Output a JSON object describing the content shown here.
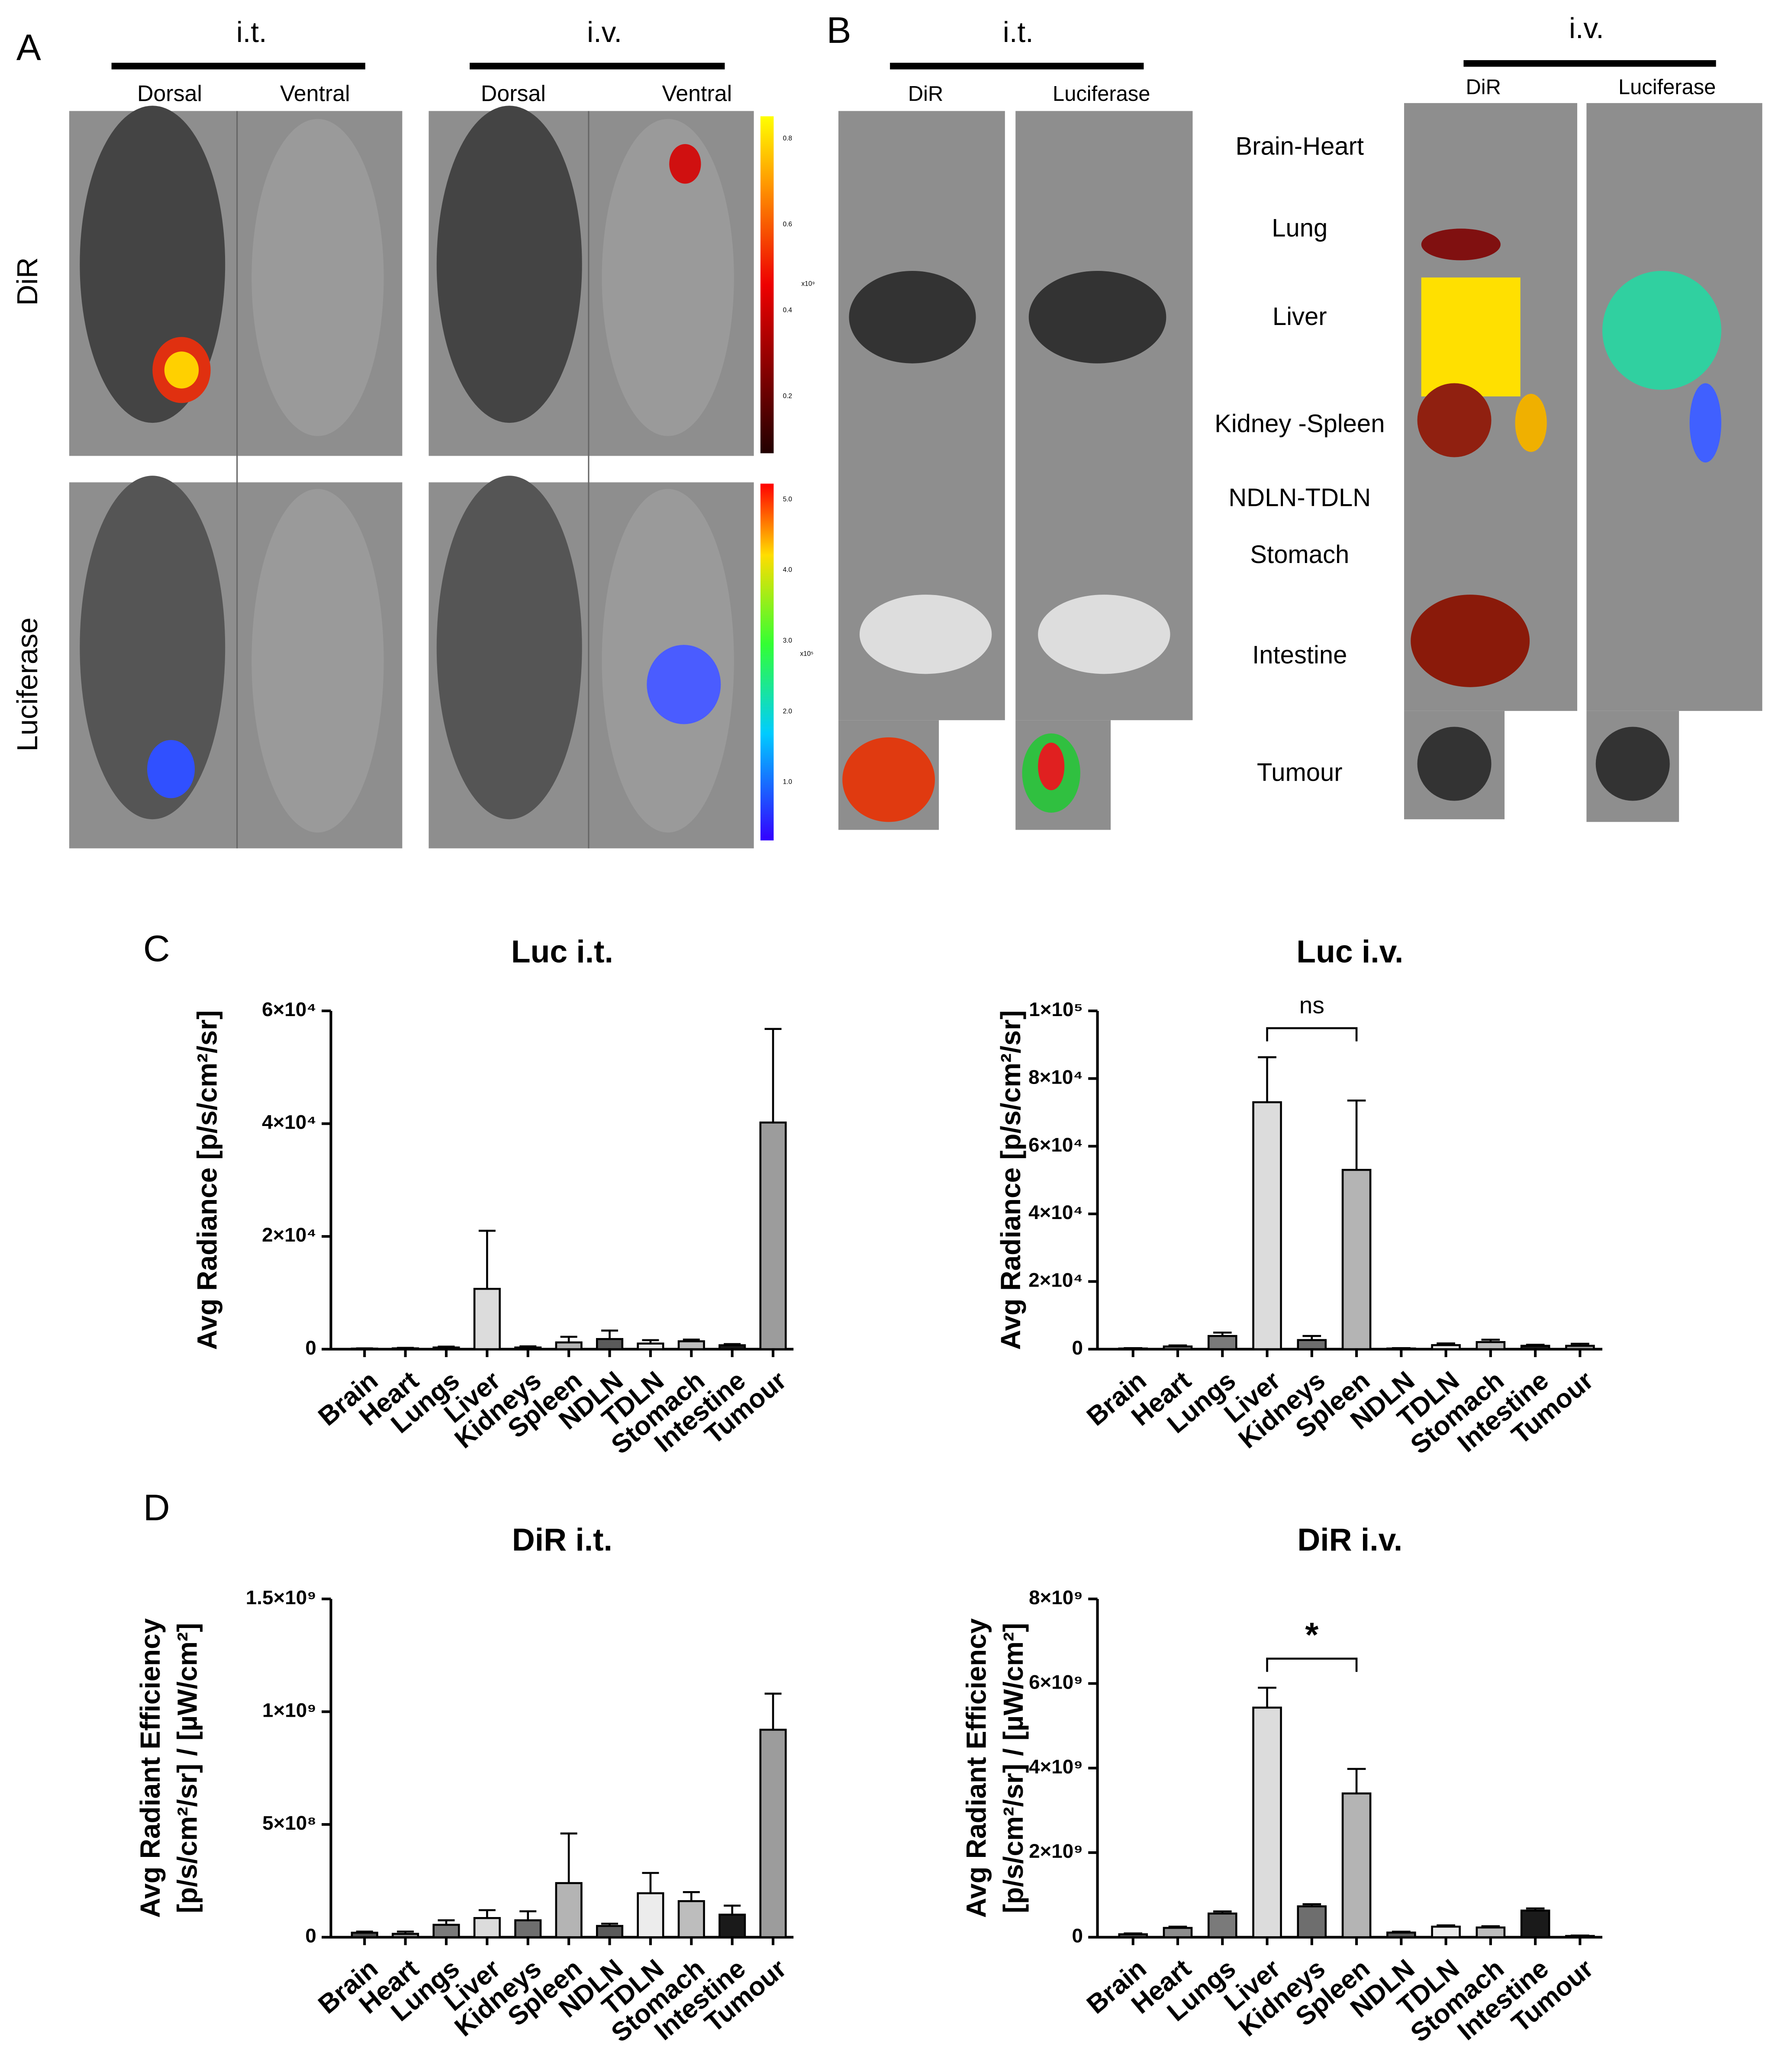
{
  "panel_labels": [
    "A",
    "B",
    "C",
    "D"
  ],
  "panel_a": {
    "routes": [
      "i.t.",
      "i.v."
    ],
    "views": [
      "Dorsal",
      "Ventral",
      "Dorsal",
      "Ventral"
    ],
    "rows": [
      "DiR",
      "Luciferase"
    ],
    "colorbars": [
      {
        "ticks": [
          "0.8",
          "0.6",
          "0.4",
          "0.2"
        ],
        "unit": "x10⁹"
      },
      {
        "ticks": [
          "5.0",
          "4.0",
          "3.0",
          "2.0",
          "1.0"
        ],
        "unit": "x10⁵"
      }
    ]
  },
  "panel_b": {
    "routes": [
      "i.t.",
      "i.v."
    ],
    "columns": [
      "DiR",
      "Luciferase",
      "DiR",
      "Luciferase"
    ],
    "organs": [
      "Brain-Heart",
      "Lung",
      "Liver",
      "Kidney -Spleen",
      "NDLN-TDLN",
      "Stomach",
      "Intestine",
      "Tumour"
    ]
  },
  "chart_data": [
    {
      "type": "bar",
      "title": "Luc i.t.",
      "ylabel": [
        "Avg Radiance [p/s/cm²/sr]"
      ],
      "categories": [
        "Brain",
        "Heart",
        "Lungs",
        "Liver",
        "Kidneys",
        "Spleen",
        "NDLN",
        "TDLN",
        "Stomach",
        "Intestine",
        "Tumour"
      ],
      "values": [
        100,
        150,
        300,
        10700,
        300,
        1200,
        1800,
        1000,
        1400,
        700,
        40200
      ],
      "errors": [
        50,
        80,
        150,
        10300,
        200,
        1000,
        1500,
        600,
        300,
        200,
        16600
      ],
      "colors": [
        "#4d4d4d",
        "#8c8c8c",
        "#7a7a7a",
        "#dcdcdc",
        "#6e6e6e",
        "#b4b4b4",
        "#5a5a5a",
        "#ececec",
        "#bdbdbd",
        "#1a1a1a",
        "#9c9c9c"
      ],
      "ylim": [
        0,
        60000
      ],
      "yticks": [
        0,
        {
          "value": 20000,
          "label": "2×10⁴"
        },
        {
          "value": 40000,
          "label": "4×10⁴"
        },
        {
          "value": 60000,
          "label": "6×10⁴"
        }
      ]
    },
    {
      "type": "bar",
      "title": "Luc i.v.",
      "ylabel": [
        "Avg Radiance [p/s/cm²/sr]"
      ],
      "categories": [
        "Brain",
        "Heart",
        "Lungs",
        "Liver",
        "Kidneys",
        "Spleen",
        "NDLN",
        "TDLN",
        "Stomach",
        "Intestine",
        "Tumour"
      ],
      "values": [
        200,
        800,
        3900,
        73000,
        2700,
        53000,
        200,
        1200,
        2100,
        1000,
        1000
      ],
      "errors": [
        100,
        300,
        1000,
        13300,
        1200,
        20500,
        100,
        500,
        700,
        300,
        600
      ],
      "colors": [
        "#4d4d4d",
        "#8c8c8c",
        "#7a7a7a",
        "#dcdcdc",
        "#6e6e6e",
        "#b4b4b4",
        "#5a5a5a",
        "#ececec",
        "#bdbdbd",
        "#1a1a1a",
        "#9c9c9c"
      ],
      "ylim": [
        0,
        100000
      ],
      "yticks": [
        0,
        {
          "value": 20000,
          "label": "2×10⁴"
        },
        {
          "value": 40000,
          "label": "4×10⁴"
        },
        {
          "value": 60000,
          "label": "6×10⁴"
        },
        {
          "value": 80000,
          "label": "8×10⁴"
        },
        {
          "value": 100000,
          "label": "1×10⁵"
        }
      ],
      "annotation": {
        "text": "ns",
        "between": [
          "Liver",
          "Spleen"
        ]
      }
    },
    {
      "type": "bar",
      "title": "DiR i.t.",
      "ylabel": [
        "Avg Radiant Efficiency",
        "[p/s/cm²/sr] / [µW/cm²]"
      ],
      "categories": [
        "Brain",
        "Heart",
        "Lungs",
        "Liver",
        "Kidneys",
        "Spleen",
        "NDLN",
        "TDLN",
        "Stomach",
        "Intestine",
        "Tumour"
      ],
      "values": [
        20000000,
        15000000,
        55000000,
        85000000,
        75000000,
        240000000,
        50000000,
        195000000,
        160000000,
        100000000,
        920000000
      ],
      "errors": [
        5000000,
        10000000,
        20000000,
        35000000,
        40000000,
        220000000,
        10000000,
        90000000,
        40000000,
        40000000,
        160000000
      ],
      "colors": [
        "#4d4d4d",
        "#8c8c8c",
        "#7a7a7a",
        "#dcdcdc",
        "#6e6e6e",
        "#b4b4b4",
        "#5a5a5a",
        "#ececec",
        "#bdbdbd",
        "#1a1a1a",
        "#9c9c9c"
      ],
      "ylim": [
        0,
        1500000000
      ],
      "yticks": [
        0,
        {
          "value": 500000000,
          "label": "5×10⁸"
        },
        {
          "value": 1000000000,
          "label": "1×10⁹"
        },
        {
          "value": 1500000000,
          "label": "1.5×10⁹"
        }
      ]
    },
    {
      "type": "bar",
      "title": "DiR i.v.",
      "ylabel": [
        "Avg Radiant Efficiency",
        "[p/s/cm²/sr] / [µW/cm²]"
      ],
      "categories": [
        "Brain",
        "Heart",
        "Lungs",
        "Liver",
        "Kidneys",
        "Spleen",
        "NDLN",
        "TDLN",
        "Stomach",
        "Intestine",
        "Tumour"
      ],
      "values": [
        70000000,
        220000000,
        560000000,
        5430000000,
        730000000,
        3400000000,
        110000000,
        250000000,
        230000000,
        630000000,
        30000000
      ],
      "errors": [
        20000000,
        30000000,
        50000000,
        470000000,
        50000000,
        580000000,
        20000000,
        30000000,
        30000000,
        50000000,
        10000000
      ],
      "colors": [
        "#4d4d4d",
        "#8c8c8c",
        "#7a7a7a",
        "#dcdcdc",
        "#6e6e6e",
        "#b4b4b4",
        "#5a5a5a",
        "#ececec",
        "#bdbdbd",
        "#1a1a1a",
        "#9c9c9c"
      ],
      "ylim": [
        0,
        8000000000
      ],
      "yticks": [
        0,
        {
          "value": 2000000000,
          "label": "2×10⁹"
        },
        {
          "value": 4000000000,
          "label": "4×10⁹"
        },
        {
          "value": 6000000000,
          "label": "6×10⁹"
        },
        {
          "value": 8000000000,
          "label": "8×10⁹"
        }
      ],
      "annotation": {
        "text": "*",
        "between": [
          "Liver",
          "Spleen"
        ]
      }
    }
  ]
}
